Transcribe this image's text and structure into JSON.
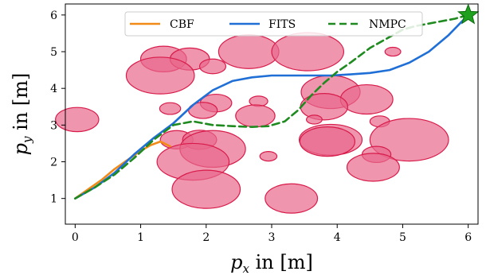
{
  "chart_data": {
    "type": "scatter",
    "xlabel_var": "p",
    "xlabel_sub": "x",
    "xlabel_rest": " in [m]",
    "ylabel_var": "p",
    "ylabel_sub": "y",
    "ylabel_rest": " in [m]",
    "xlim": [
      -0.15,
      6.15
    ],
    "ylim": [
      0.3,
      6.3
    ],
    "xticks": [
      0,
      1,
      2,
      3,
      4,
      5,
      6
    ],
    "yticks": [
      1,
      2,
      3,
      4,
      5,
      6
    ],
    "grid": false,
    "legend_position": "top-center",
    "start": [
      0,
      1
    ],
    "goal": [
      6,
      6
    ],
    "goal_marker": "star",
    "colors": {
      "obstacle_fill": "#e8688c",
      "obstacle_edge": "#d81b4a",
      "goal": "#1fa01f"
    },
    "obstacles": [
      {
        "x": 1.35,
        "y": 4.8,
        "rx": 0.35,
        "ry": 0.35
      },
      {
        "x": 1.75,
        "y": 4.8,
        "rx": 0.3,
        "ry": 0.3
      },
      {
        "x": 1.3,
        "y": 4.35,
        "rx": 0.52,
        "ry": 0.5
      },
      {
        "x": 2.1,
        "y": 4.6,
        "rx": 0.2,
        "ry": 0.2
      },
      {
        "x": 2.65,
        "y": 5.0,
        "rx": 0.46,
        "ry": 0.46
      },
      {
        "x": 3.55,
        "y": 5.0,
        "rx": 0.55,
        "ry": 0.52
      },
      {
        "x": 4.85,
        "y": 5.0,
        "rx": 0.12,
        "ry": 0.12
      },
      {
        "x": 0.03,
        "y": 3.15,
        "rx": 0.33,
        "ry": 0.33
      },
      {
        "x": 1.45,
        "y": 3.45,
        "rx": 0.16,
        "ry": 0.16
      },
      {
        "x": 2.15,
        "y": 3.6,
        "rx": 0.24,
        "ry": 0.24
      },
      {
        "x": 1.95,
        "y": 3.4,
        "rx": 0.22,
        "ry": 0.22
      },
      {
        "x": 2.8,
        "y": 3.65,
        "rx": 0.14,
        "ry": 0.14
      },
      {
        "x": 2.75,
        "y": 3.25,
        "rx": 0.3,
        "ry": 0.3
      },
      {
        "x": 3.9,
        "y": 3.9,
        "rx": 0.45,
        "ry": 0.45
      },
      {
        "x": 4.45,
        "y": 3.7,
        "rx": 0.4,
        "ry": 0.4
      },
      {
        "x": 3.8,
        "y": 3.5,
        "rx": 0.36,
        "ry": 0.36
      },
      {
        "x": 4.65,
        "y": 3.1,
        "rx": 0.15,
        "ry": 0.15
      },
      {
        "x": 3.65,
        "y": 3.15,
        "rx": 0.12,
        "ry": 0.12
      },
      {
        "x": 1.55,
        "y": 2.6,
        "rx": 0.25,
        "ry": 0.25
      },
      {
        "x": 1.9,
        "y": 2.6,
        "rx": 0.26,
        "ry": 0.26
      },
      {
        "x": 2.1,
        "y": 2.35,
        "rx": 0.5,
        "ry": 0.5
      },
      {
        "x": 1.8,
        "y": 2.0,
        "rx": 0.55,
        "ry": 0.5
      },
      {
        "x": 2.0,
        "y": 1.25,
        "rx": 0.52,
        "ry": 0.52
      },
      {
        "x": 2.95,
        "y": 2.15,
        "rx": 0.13,
        "ry": 0.13
      },
      {
        "x": 3.9,
        "y": 2.6,
        "rx": 0.48,
        "ry": 0.42
      },
      {
        "x": 3.85,
        "y": 2.55,
        "rx": 0.42,
        "ry": 0.4
      },
      {
        "x": 5.1,
        "y": 2.6,
        "rx": 0.6,
        "ry": 0.58
      },
      {
        "x": 4.6,
        "y": 2.2,
        "rx": 0.22,
        "ry": 0.22
      },
      {
        "x": 4.55,
        "y": 1.85,
        "rx": 0.4,
        "ry": 0.38
      },
      {
        "x": 3.3,
        "y": 1.0,
        "rx": 0.4,
        "ry": 0.4
      }
    ],
    "series": [
      {
        "name": "CBF",
        "color": "#f28a18",
        "dash": "solid",
        "x": [
          0,
          0.2,
          0.4,
          0.6,
          0.8,
          1.0,
          1.15,
          1.3,
          1.45
        ],
        "y": [
          1,
          1.25,
          1.5,
          1.8,
          2.05,
          2.3,
          2.45,
          2.55,
          2.42
        ]
      },
      {
        "name": "FITS",
        "color": "#1f6fd6",
        "dash": "solid",
        "x": [
          0,
          0.3,
          0.6,
          0.9,
          1.2,
          1.5,
          1.8,
          2.1,
          2.4,
          2.7,
          3.0,
          3.3,
          3.6,
          3.9,
          4.2,
          4.5,
          4.8,
          5.1,
          5.4,
          5.7,
          6.0
        ],
        "y": [
          1,
          1.3,
          1.7,
          2.2,
          2.65,
          3.05,
          3.55,
          3.95,
          4.2,
          4.3,
          4.35,
          4.35,
          4.35,
          4.35,
          4.38,
          4.42,
          4.5,
          4.7,
          5.0,
          5.45,
          6.0
        ]
      },
      {
        "name": "NMPC",
        "color": "#1f8a1f",
        "dash": "dashed",
        "x": [
          0,
          0.3,
          0.6,
          0.9,
          1.2,
          1.5,
          1.8,
          2.1,
          2.4,
          2.7,
          2.95,
          3.2,
          3.4,
          3.6,
          3.8,
          4.0,
          4.2,
          4.5,
          4.8,
          5.0,
          5.2,
          5.5,
          5.8,
          6.0
        ],
        "y": [
          1,
          1.3,
          1.65,
          2.1,
          2.6,
          3.0,
          3.1,
          3.0,
          2.97,
          2.95,
          2.97,
          3.1,
          3.4,
          3.8,
          4.15,
          4.45,
          4.7,
          5.1,
          5.4,
          5.6,
          5.7,
          5.8,
          5.9,
          6.0
        ]
      }
    ]
  }
}
